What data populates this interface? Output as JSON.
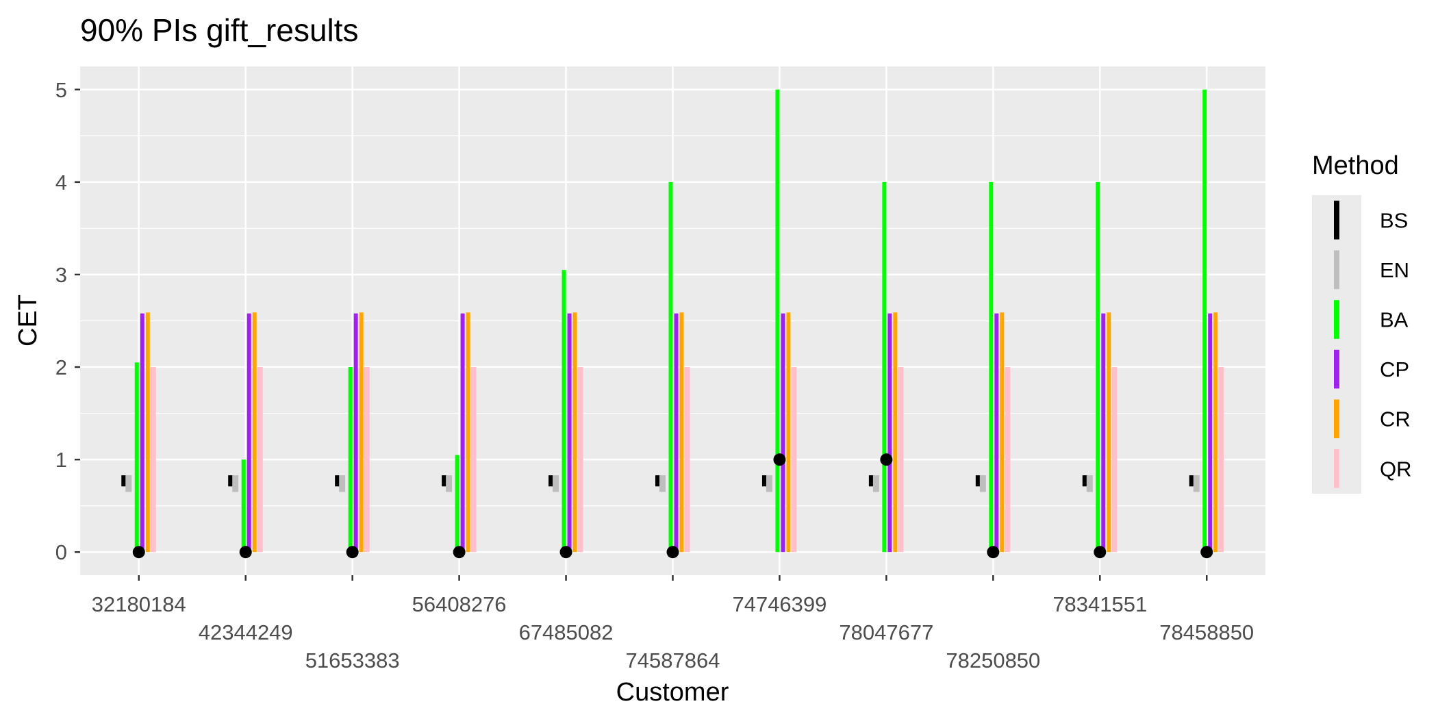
{
  "chart_data": {
    "type": "bar",
    "title": "90% PIs gift_results",
    "xlabel": "Customer",
    "ylabel": "CET",
    "ylim": [
      -0.25,
      5.25
    ],
    "yticks": [
      0,
      1,
      2,
      3,
      4,
      5
    ],
    "grid": true,
    "legend_title": "Method",
    "legend_position": "right",
    "categories": [
      "32180184",
      "42344249",
      "51653383",
      "56408276",
      "67485082",
      "74587864",
      "74746399",
      "78047677",
      "78250850",
      "78341551",
      "78458850"
    ],
    "series": [
      {
        "name": "BS",
        "color": "#000000",
        "intervals": [
          [
            0.71,
            0.83
          ],
          [
            0.71,
            0.83
          ],
          [
            0.71,
            0.83
          ],
          [
            0.71,
            0.83
          ],
          [
            0.71,
            0.83
          ],
          [
            0.71,
            0.83
          ],
          [
            0.71,
            0.83
          ],
          [
            0.71,
            0.83
          ],
          [
            0.71,
            0.83
          ],
          [
            0.71,
            0.83
          ],
          [
            0.71,
            0.83
          ]
        ]
      },
      {
        "name": "EN",
        "color": "#bebebe",
        "intervals": [
          [
            0.65,
            0.83
          ],
          [
            0.65,
            0.83
          ],
          [
            0.65,
            0.83
          ],
          [
            0.65,
            0.83
          ],
          [
            0.65,
            0.83
          ],
          [
            0.65,
            0.83
          ],
          [
            0.65,
            0.83
          ],
          [
            0.65,
            0.83
          ],
          [
            0.65,
            0.83
          ],
          [
            0.65,
            0.83
          ],
          [
            0.65,
            0.83
          ]
        ]
      },
      {
        "name": "BA",
        "color": "#00ff00",
        "intervals": [
          [
            0,
            2.05
          ],
          [
            0,
            1.0
          ],
          [
            0,
            2.0
          ],
          [
            0,
            1.05
          ],
          [
            0,
            3.05
          ],
          [
            0,
            4.0
          ],
          [
            0,
            5.0
          ],
          [
            0,
            4.0
          ],
          [
            0,
            4.0
          ],
          [
            0,
            4.0
          ],
          [
            0,
            5.0
          ]
        ]
      },
      {
        "name": "CP",
        "color": "#a020f0",
        "intervals": [
          [
            0,
            2.58
          ],
          [
            0,
            2.58
          ],
          [
            0,
            2.58
          ],
          [
            0,
            2.58
          ],
          [
            0,
            2.58
          ],
          [
            0,
            2.58
          ],
          [
            0,
            2.58
          ],
          [
            0,
            2.58
          ],
          [
            0,
            2.58
          ],
          [
            0,
            2.58
          ],
          [
            0,
            2.58
          ]
        ]
      },
      {
        "name": "CR",
        "color": "#ffa500",
        "intervals": [
          [
            0,
            2.59
          ],
          [
            0,
            2.59
          ],
          [
            0,
            2.59
          ],
          [
            0,
            2.59
          ],
          [
            0,
            2.59
          ],
          [
            0,
            2.59
          ],
          [
            0,
            2.59
          ],
          [
            0,
            2.59
          ],
          [
            0,
            2.59
          ],
          [
            0,
            2.59
          ],
          [
            0,
            2.59
          ]
        ]
      },
      {
        "name": "QR",
        "color": "#ffc0cb",
        "intervals": [
          [
            0,
            2.0
          ],
          [
            0,
            2.0
          ],
          [
            0,
            2.0
          ],
          [
            0,
            2.0
          ],
          [
            0,
            2.0
          ],
          [
            0,
            2.0
          ],
          [
            0,
            2.0
          ],
          [
            0,
            2.0
          ],
          [
            0,
            2.0
          ],
          [
            0,
            2.0
          ],
          [
            0,
            2.0
          ]
        ]
      }
    ],
    "observed": [
      0,
      0,
      0,
      0,
      0,
      0,
      1,
      1,
      0,
      0,
      0
    ]
  }
}
